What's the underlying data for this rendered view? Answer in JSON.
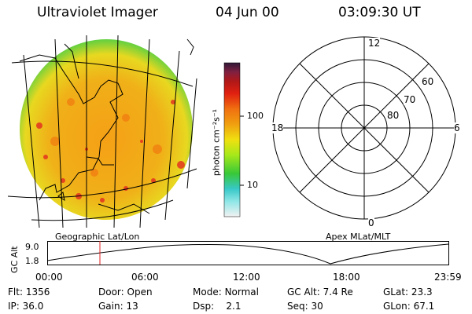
{
  "header": {
    "title": "Ultraviolet Imager",
    "date": "04 Jun 00",
    "time": "03:09:30 UT"
  },
  "colorbar": {
    "label": "photon cm⁻²s⁻¹",
    "ticks": [
      "100",
      "10"
    ],
    "stops": [
      "#f2f2f2",
      "#8ee6e6",
      "#38c8c8",
      "#38c838",
      "#a6e81a",
      "#f0e010",
      "#f0a010",
      "#f07010",
      "#e02010",
      "#b01818",
      "#802040",
      "#301838"
    ]
  },
  "left_panel": {
    "caption": "Geographic Lat/Lon",
    "image_description": "auroral image earth disk"
  },
  "right_panel": {
    "caption": "Apex MLat/MLT",
    "mlt_labels": {
      "top": "12",
      "left": "18",
      "right": "6",
      "bottom": "0"
    },
    "lat_labels": [
      "60",
      "70",
      "80"
    ]
  },
  "altitude_plot": {
    "ylabel": "GC Alt",
    "y_ticks": [
      "9.0",
      "1.8"
    ],
    "x_ticks": [
      "00:00",
      "06:00",
      "12:00",
      "18:00",
      "23:59"
    ],
    "marker_time": "03:09:30"
  },
  "info": {
    "row1": [
      {
        "k": "Flt:",
        "v": "1356"
      },
      {
        "k": "Door:",
        "v": "Open"
      },
      {
        "k": "Mode:",
        "v": "Normal"
      },
      {
        "k": "GC Alt:",
        "v": "7.4 Re"
      },
      {
        "k": "GLat:",
        "v": "23.3"
      }
    ],
    "row2": [
      {
        "k": "IP:",
        "v": "36.0"
      },
      {
        "k": "Gain:",
        "v": "13"
      },
      {
        "k": "Dsp:",
        "v": "2.1"
      },
      {
        "k": "Seq:",
        "v": "30"
      },
      {
        "k": "GLon:",
        "v": "67.1"
      }
    ]
  },
  "colors": {
    "accent_marker": "#e02020",
    "line": "#000000"
  }
}
